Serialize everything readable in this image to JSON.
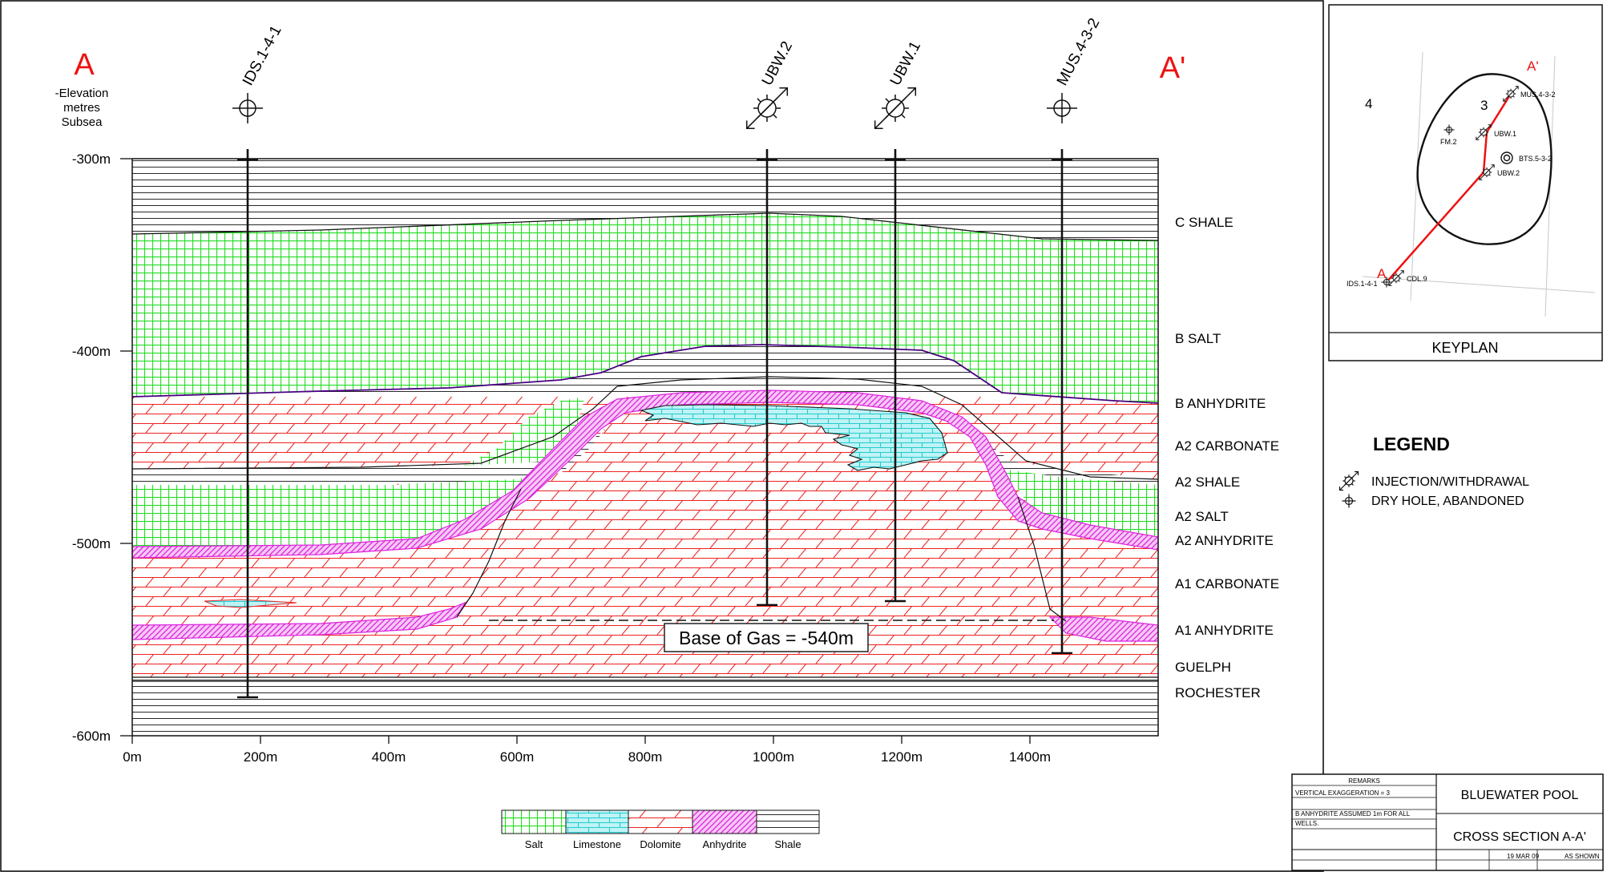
{
  "section": {
    "start_label": "A",
    "end_label": "A'",
    "elevation_label": [
      "-Elevation",
      "metres",
      "Subsea"
    ],
    "elev_ticks": [
      "-300m",
      "-400m",
      "-500m",
      "-600m"
    ],
    "dist_ticks": [
      "0m",
      "200m",
      "400m",
      "600m",
      "800m",
      "1000m",
      "1200m",
      "1400m"
    ],
    "wells": [
      {
        "name": "IDS.1-4-1",
        "x": 180,
        "symbol": "dry",
        "td": -580
      },
      {
        "name": "UBW.2",
        "x": 990,
        "symbol": "injection",
        "td": -532
      },
      {
        "name": "UBW.1",
        "x": 1190,
        "symbol": "injection",
        "td": -530
      },
      {
        "name": "MUS.4-3-2",
        "x": 1450,
        "symbol": "dry",
        "td": -557
      }
    ],
    "formations": [
      "C SHALE",
      "B SALT",
      "B ANHYDRITE",
      "A2 CARBONATE",
      "A2 SHALE",
      "A2 SALT",
      "A2 ANHYDRITE",
      "A1 CARBONATE",
      "A1 ANHYDRITE",
      "GUELPH",
      "ROCHESTER"
    ],
    "gas_label": "Base of Gas = -540m"
  },
  "pattern_legend": [
    "Salt",
    "Limestone",
    "Dolomite",
    "Anhydrite",
    "Shale"
  ],
  "colors": {
    "salt": "#22dd22",
    "limestone": "#22cccc",
    "dolomite": "#ee2222",
    "anhydrite": "#dd22dd",
    "shale": "#111111",
    "label_red": "#ee1111",
    "keyline_red": "#ee1111"
  },
  "keyplan": {
    "title": "KEYPLAN",
    "section_numbers": [
      "4",
      "3"
    ],
    "point_a": "A",
    "point_a_prime": "A'",
    "wells": [
      "MUS.4-3-2",
      "UBW.1",
      "FM.2",
      "BTS.5-3-2",
      "UBW.2",
      "CDL.9",
      "IDS.1-4-1"
    ]
  },
  "legend": {
    "title": "LEGEND",
    "items": [
      {
        "symbol": "injection",
        "label": "INJECTION/WITHDRAWAL"
      },
      {
        "symbol": "dry",
        "label": "DRY HOLE, ABANDONED"
      }
    ]
  },
  "title_block": {
    "remarks_header": "REMARKS",
    "remark_1": "VERTICAL EXAGGERATION = 3",
    "remark_2": "B ANHYDRITE ASSUMED 1m FOR ALL",
    "remark_3": "WELLS.",
    "title_1": "BLUEWATER POOL",
    "title_2": "CROSS SECTION A-A'",
    "date": "19 MAR 09",
    "scale": "AS SHOWN"
  }
}
